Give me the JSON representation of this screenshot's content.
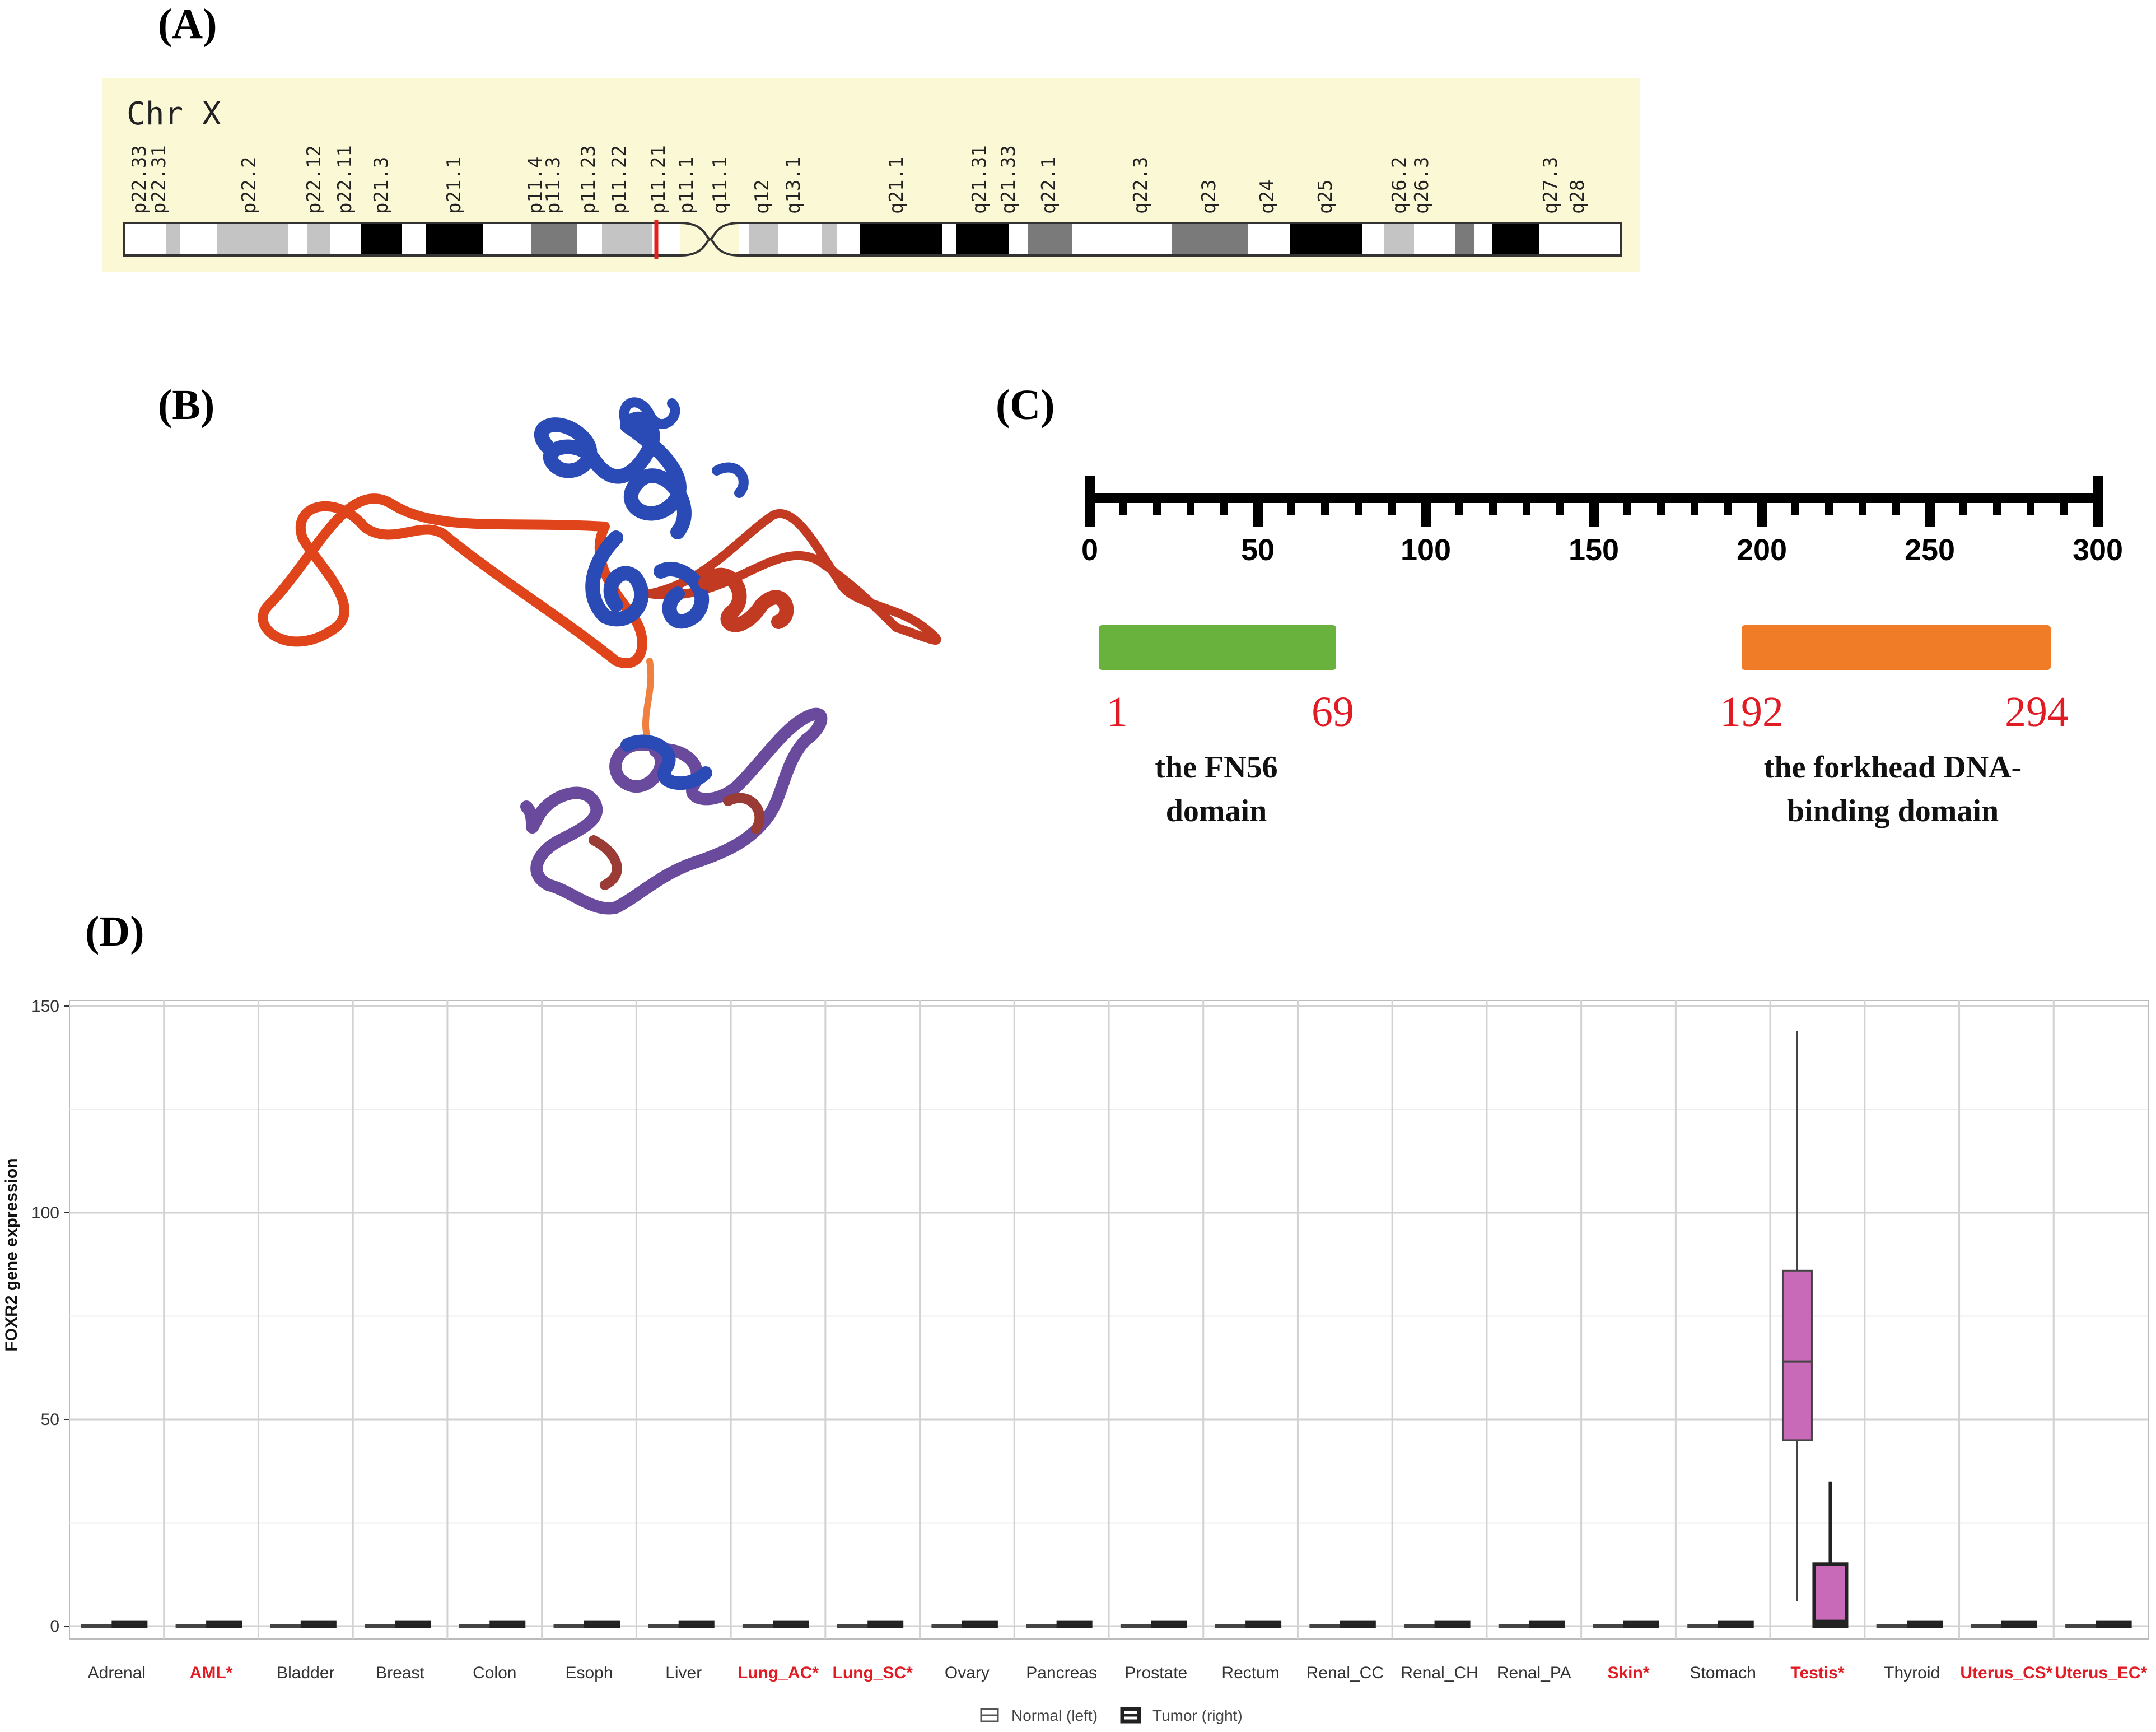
{
  "panel_labels": {
    "a": "(A)",
    "b": "(B)",
    "c": "(C)",
    "d": "(D)"
  },
  "ideogram": {
    "title": "Chr X",
    "bands": [
      "p22.33",
      "p22.31",
      "p22.2",
      "p22.12",
      "p22.11",
      "p21.3",
      "p21.1",
      "p11.4",
      "p11.3",
      "p11.23",
      "p11.22",
      "p11.21",
      "p11.1",
      "q11.1",
      "q12",
      "q13.1",
      "q21.1",
      "q21.31",
      "q21.33",
      "q22.1",
      "q22.3",
      "q23",
      "q24",
      "q25",
      "q26.2",
      "q26.3",
      "q27.3",
      "q28"
    ],
    "colors": {
      "background": "#fbf8d6",
      "marker": "#e32020",
      "black": "#000000",
      "dark": "#7a7a7a",
      "light": "#c4c4c4"
    }
  },
  "protein_structure": {
    "description": "",
    "colors": {
      "blue": "#2a4bb5",
      "orange": "#e0441a",
      "purple": "#6a4a9c",
      "brown": "#9a3b35"
    }
  },
  "domain_map": {
    "ruler_ticks": [
      "0",
      "50",
      "100",
      "150",
      "200",
      "250",
      "300"
    ],
    "ruler_max": 300,
    "domains": [
      {
        "start": 1,
        "end": 69,
        "start_label": "1",
        "end_label": "69",
        "name_line1": "the FN56",
        "name_line2": "domain",
        "color": "#6ab23e"
      },
      {
        "start": 192,
        "end": 294,
        "start_label": "192",
        "end_label": "294",
        "name_line1": "the forkhead DNA-",
        "name_line2": "binding domain",
        "color": "#f07c28"
      }
    ],
    "number_color": "#e01b24"
  },
  "chart_data": {
    "type": "box",
    "ylabel": "FOXR2 gene expression",
    "ylim": [
      0,
      150
    ],
    "yticks": [
      0,
      50,
      100,
      150
    ],
    "categories": [
      "Adrenal",
      "AML*",
      "Bladder",
      "Breast",
      "Colon",
      "Esoph",
      "Liver",
      "Lung_AC*",
      "Lung_SC*",
      "Ovary",
      "Pancreas",
      "Prostate",
      "Rectum",
      "Renal_CC",
      "Renal_CH",
      "Renal_PA",
      "Skin*",
      "Stomach",
      "Testis*",
      "Thyroid",
      "Uterus_CS*",
      "Uterus_EC*"
    ],
    "highlighted": [
      false,
      true,
      false,
      false,
      false,
      false,
      false,
      true,
      true,
      false,
      false,
      false,
      false,
      false,
      false,
      false,
      true,
      false,
      true,
      false,
      true,
      true
    ],
    "highlight_color": "#e01b24",
    "legend": {
      "normal": "Normal (left)",
      "tumor": "Tumor (right)",
      "position": "bottom"
    },
    "grid": true,
    "series": [
      {
        "name": "Normal (left)",
        "boxes": [
          {
            "min": 0,
            "q1": 0,
            "median": 0,
            "q3": 0,
            "max": 0
          },
          {
            "min": 0,
            "q1": 0,
            "median": 0,
            "q3": 0,
            "max": 0
          },
          {
            "min": 0,
            "q1": 0,
            "median": 0,
            "q3": 0,
            "max": 0
          },
          {
            "min": 0,
            "q1": 0,
            "median": 0,
            "q3": 0,
            "max": 0
          },
          {
            "min": 0,
            "q1": 0,
            "median": 0,
            "q3": 0,
            "max": 0
          },
          {
            "min": 0,
            "q1": 0,
            "median": 0,
            "q3": 0,
            "max": 0
          },
          {
            "min": 0,
            "q1": 0,
            "median": 0,
            "q3": 0,
            "max": 0
          },
          {
            "min": 0,
            "q1": 0,
            "median": 0,
            "q3": 0,
            "max": 0
          },
          {
            "min": 0,
            "q1": 0,
            "median": 0,
            "q3": 0,
            "max": 0
          },
          {
            "min": 0,
            "q1": 0,
            "median": 0,
            "q3": 0,
            "max": 0
          },
          {
            "min": 0,
            "q1": 0,
            "median": 0,
            "q3": 0,
            "max": 0
          },
          {
            "min": 0,
            "q1": 0,
            "median": 0,
            "q3": 0,
            "max": 0
          },
          {
            "min": 0,
            "q1": 0,
            "median": 0,
            "q3": 0,
            "max": 0
          },
          {
            "min": 0,
            "q1": 0,
            "median": 0,
            "q3": 0,
            "max": 0
          },
          {
            "min": 0,
            "q1": 0,
            "median": 0,
            "q3": 0,
            "max": 0
          },
          {
            "min": 0,
            "q1": 0,
            "median": 0,
            "q3": 0,
            "max": 0
          },
          {
            "min": 0,
            "q1": 0,
            "median": 0,
            "q3": 0,
            "max": 0
          },
          {
            "min": 0,
            "q1": 0,
            "median": 0,
            "q3": 0,
            "max": 0
          },
          {
            "min": 6,
            "q1": 45,
            "median": 64,
            "q3": 86,
            "max": 144
          },
          {
            "min": 0,
            "q1": 0,
            "median": 0,
            "q3": 0,
            "max": 0
          },
          {
            "min": 0,
            "q1": 0,
            "median": 0,
            "q3": 0,
            "max": 0
          },
          {
            "min": 0,
            "q1": 0,
            "median": 0,
            "q3": 0,
            "max": 0
          }
        ]
      },
      {
        "name": "Tumor (right)",
        "boxes": [
          {
            "min": 0,
            "q1": 0,
            "median": 0,
            "q3": 1,
            "max": 1
          },
          {
            "min": 0,
            "q1": 0,
            "median": 0,
            "q3": 1,
            "max": 1
          },
          {
            "min": 0,
            "q1": 0,
            "median": 0,
            "q3": 1,
            "max": 1
          },
          {
            "min": 0,
            "q1": 0,
            "median": 0,
            "q3": 1,
            "max": 1
          },
          {
            "min": 0,
            "q1": 0,
            "median": 0,
            "q3": 1,
            "max": 1
          },
          {
            "min": 0,
            "q1": 0,
            "median": 0,
            "q3": 1,
            "max": 1
          },
          {
            "min": 0,
            "q1": 0,
            "median": 0,
            "q3": 1,
            "max": 1
          },
          {
            "min": 0,
            "q1": 0,
            "median": 0,
            "q3": 1,
            "max": 1
          },
          {
            "min": 0,
            "q1": 0,
            "median": 0,
            "q3": 1,
            "max": 1
          },
          {
            "min": 0,
            "q1": 0,
            "median": 0,
            "q3": 1,
            "max": 1
          },
          {
            "min": 0,
            "q1": 0,
            "median": 0,
            "q3": 1,
            "max": 1
          },
          {
            "min": 0,
            "q1": 0,
            "median": 0,
            "q3": 1,
            "max": 1
          },
          {
            "min": 0,
            "q1": 0,
            "median": 0,
            "q3": 1,
            "max": 1
          },
          {
            "min": 0,
            "q1": 0,
            "median": 0,
            "q3": 1,
            "max": 1
          },
          {
            "min": 0,
            "q1": 0,
            "median": 0,
            "q3": 1,
            "max": 1
          },
          {
            "min": 0,
            "q1": 0,
            "median": 0,
            "q3": 1,
            "max": 1
          },
          {
            "min": 0,
            "q1": 0,
            "median": 0,
            "q3": 1,
            "max": 1
          },
          {
            "min": 0,
            "q1": 0,
            "median": 0,
            "q3": 1,
            "max": 1
          },
          {
            "min": 0,
            "q1": 0,
            "median": 1,
            "q3": 15,
            "max": 35
          },
          {
            "min": 0,
            "q1": 0,
            "median": 0,
            "q3": 1,
            "max": 1
          },
          {
            "min": 0,
            "q1": 0,
            "median": 0,
            "q3": 1,
            "max": 1
          },
          {
            "min": 0,
            "q1": 0,
            "median": 0,
            "q3": 1,
            "max": 1
          }
        ]
      }
    ],
    "box_colors": {
      "testis": "#c86ab8",
      "default": "#333333"
    }
  }
}
